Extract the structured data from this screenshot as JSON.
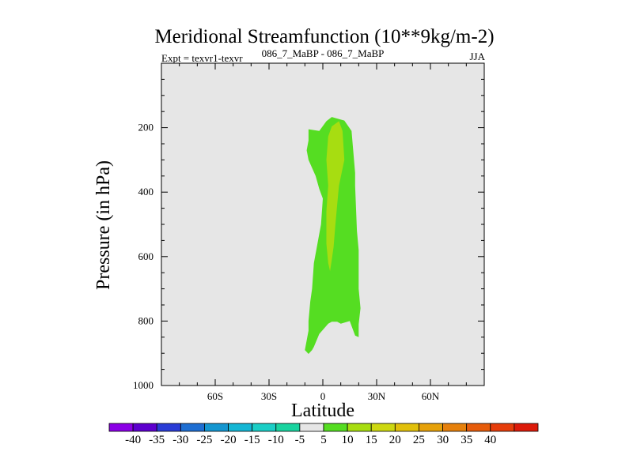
{
  "chart_data": {
    "type": "contour",
    "title": "Meridional Streamfunction (10**9kg/m-2)",
    "subtitle_left": "Expt = texvr1-texvr",
    "subtitle_center": "086_7_MaBP - 086_7_MaBP",
    "subtitle_right": "JJA",
    "xlabel": "Latitude",
    "ylabel": "Pressure (in hPa)",
    "xlim": [
      -90,
      90
    ],
    "ylim": [
      1000,
      0
    ],
    "x_ticks": [
      {
        "value": -60,
        "label": "60S"
      },
      {
        "value": -30,
        "label": "30S"
      },
      {
        "value": 0,
        "label": "0"
      },
      {
        "value": 30,
        "label": "30N"
      },
      {
        "value": 60,
        "label": "60N"
      }
    ],
    "y_ticks": [
      {
        "value": 200,
        "label": "200"
      },
      {
        "value": 400,
        "label": "400"
      },
      {
        "value": 600,
        "label": "600"
      },
      {
        "value": 800,
        "label": "800"
      },
      {
        "value": 1000,
        "label": "1000"
      }
    ],
    "background_color": "#e6e6e6",
    "regions": [
      {
        "name": "band-5-to-10",
        "level": "5 to 10",
        "color": "#55dd22",
        "polygon": [
          [
            -8,
            205
          ],
          [
            -2,
            210
          ],
          [
            2,
            180
          ],
          [
            5,
            167
          ],
          [
            12,
            178
          ],
          [
            16,
            210
          ],
          [
            18,
            340
          ],
          [
            18,
            380
          ],
          [
            19,
            520
          ],
          [
            20,
            580
          ],
          [
            20,
            700
          ],
          [
            21,
            760
          ],
          [
            20,
            810
          ],
          [
            20,
            850
          ],
          [
            18,
            845
          ],
          [
            15,
            800
          ],
          [
            10,
            808
          ],
          [
            8,
            802
          ],
          [
            5,
            802
          ],
          [
            3,
            808
          ],
          [
            -2,
            840
          ],
          [
            -5,
            880
          ],
          [
            -6,
            890
          ],
          [
            -8,
            902
          ],
          [
            -10,
            890
          ],
          [
            -9,
            860
          ],
          [
            -8,
            830
          ],
          [
            -8,
            800
          ],
          [
            -7,
            740
          ],
          [
            -6,
            700
          ],
          [
            -5,
            620
          ],
          [
            -3,
            560
          ],
          [
            -1,
            500
          ],
          [
            0,
            420
          ],
          [
            -2,
            390
          ],
          [
            -4,
            350
          ],
          [
            -8,
            300
          ],
          [
            -9,
            270
          ],
          [
            -8,
            240
          ],
          [
            -8,
            205
          ]
        ]
      },
      {
        "name": "band-10-to-15",
        "level": "10 to 15",
        "color": "#a7dd11",
        "polygon": [
          [
            3,
            227
          ],
          [
            5,
            196
          ],
          [
            9,
            180
          ],
          [
            11,
            210
          ],
          [
            12,
            300
          ],
          [
            9,
            380
          ],
          [
            8,
            440
          ],
          [
            7,
            500
          ],
          [
            6,
            570
          ],
          [
            5,
            610
          ],
          [
            4,
            645
          ],
          [
            3,
            620
          ],
          [
            2,
            560
          ],
          [
            2,
            460
          ],
          [
            3,
            380
          ],
          [
            2,
            300
          ],
          [
            3,
            227
          ]
        ]
      }
    ],
    "colorbar": {
      "colors": [
        "#8b00e6",
        "#5d00ce",
        "#2a3cd6",
        "#1e6ed2",
        "#1496d0",
        "#14b6d4",
        "#1acec6",
        "#19d39f",
        "#e6e6e6",
        "#55dd22",
        "#a7dd11",
        "#cdd811",
        "#e1c00b",
        "#e6a10a",
        "#e6800b",
        "#e65c0b",
        "#e63d0b",
        "#dc1a0a"
      ],
      "labels": [
        "-40",
        "-35",
        "-30",
        "-25",
        "-20",
        "-15",
        "-10",
        "-5",
        "5",
        "10",
        "15",
        "20",
        "25",
        "30",
        "35",
        "40"
      ]
    }
  }
}
